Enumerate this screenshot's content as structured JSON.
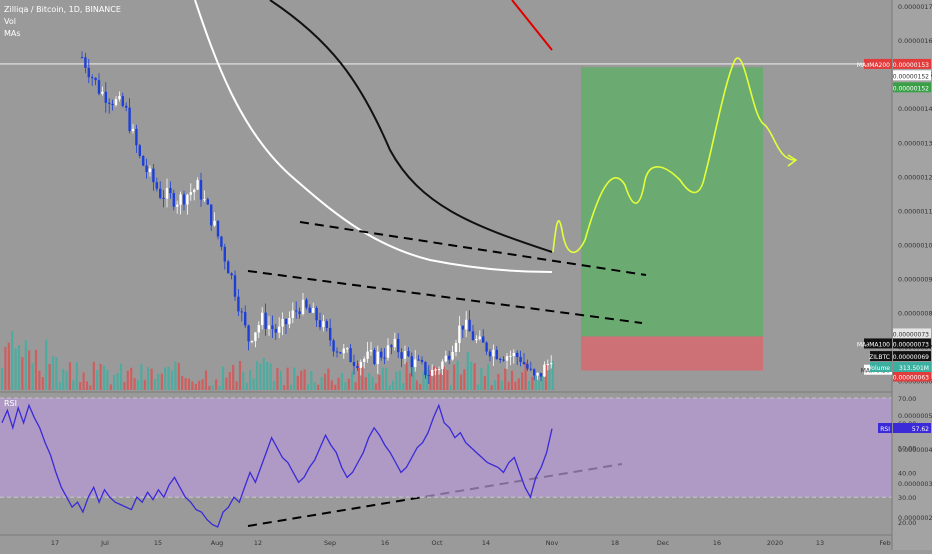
{
  "header": {
    "title": "Zilliqa / Bitcoin, 1D, BINANCE",
    "vol_label": "Vol",
    "mas_label": "MAs"
  },
  "colors": {
    "background": "#9a9a9a",
    "up_candle": "#ffffff",
    "down_candle": "#1c3fd8",
    "volume_up": "#3ab0a0",
    "volume_down": "#d9504f",
    "ma50": "#ffffff",
    "ma100": "#111111",
    "ma200": "#e00000",
    "rsi_line": "#3a2ad8",
    "rsi_band": "#b79ad6",
    "target_zone": "#5fae66",
    "stop_zone": "#d9666e",
    "projection": "#e3ff3a"
  },
  "chart_data": {
    "type": "candlestick",
    "symbol": "ZILBTC",
    "price_axis": {
      "range": [
        1.8e-07,
        1.7e-06
      ],
      "ticks": [
        "0.00000170",
        "0.00000160",
        "0.00000150",
        "0.00000140",
        "0.00000130",
        "0.00000120",
        "0.00000110",
        "0.00000100",
        "0.00000090",
        "0.00000080",
        "0.00000070",
        "0.00000060",
        "0.00000050",
        "0.00000040",
        "0.00000030",
        "0.00000020"
      ]
    },
    "x_axis": {
      "labels": [
        "17",
        "Jul",
        "15",
        "Aug",
        "12",
        "Sep",
        "16",
        "Oct",
        "14",
        "Nov",
        "18",
        "Dec",
        "16",
        "2020",
        "13",
        "Feb"
      ]
    },
    "price_labels": {
      "ma200": {
        "name": "MA∂MA200",
        "value": "0.00000153"
      },
      "level_152": "0.00000152",
      "target": "0.00000152",
      "entry": "0.00000073",
      "ma100": {
        "name": "MA∂MA100",
        "value": "0.00000073"
      },
      "last": {
        "name": "ZILBTC",
        "value": "0.00000069"
      },
      "ma50": {
        "name": "MA∂MA50",
        "value": "0.00000065"
      },
      "stop": "0.00000063"
    },
    "volume": {
      "name": "Volume",
      "value": "313.501M"
    },
    "rsi": {
      "name": "RSI",
      "value": "57.62",
      "ticks": [
        "70.00",
        "60.00",
        "50.00",
        "40.00",
        "30.00",
        "20.00"
      ],
      "band": [
        30,
        70
      ],
      "values": [
        60,
        65,
        58,
        66,
        60,
        67,
        62,
        58,
        52,
        47,
        40,
        34,
        30,
        26,
        28,
        24,
        30,
        34,
        28,
        33,
        30,
        28,
        27,
        26,
        25,
        30,
        28,
        32,
        29,
        33,
        30,
        35,
        38,
        34,
        30,
        28,
        25,
        24,
        21,
        19,
        18,
        24,
        26,
        30,
        28,
        34,
        40,
        36,
        42,
        48,
        54,
        50,
        46,
        44,
        40,
        36,
        38,
        42,
        45,
        50,
        55,
        51,
        48,
        42,
        38,
        40,
        44,
        48,
        54,
        58,
        55,
        51,
        48,
        44,
        40,
        42,
        46,
        50,
        52,
        56,
        62,
        67,
        60,
        58,
        54,
        56,
        52,
        50,
        48,
        46,
        44,
        43,
        42,
        40,
        44,
        46,
        40,
        34,
        30,
        38,
        42,
        48,
        57.62
      ]
    },
    "trendlines": [
      "upper resistance",
      "lower support",
      "rsi support"
    ],
    "projection": "hand-drawn forecast path into the target zone"
  }
}
